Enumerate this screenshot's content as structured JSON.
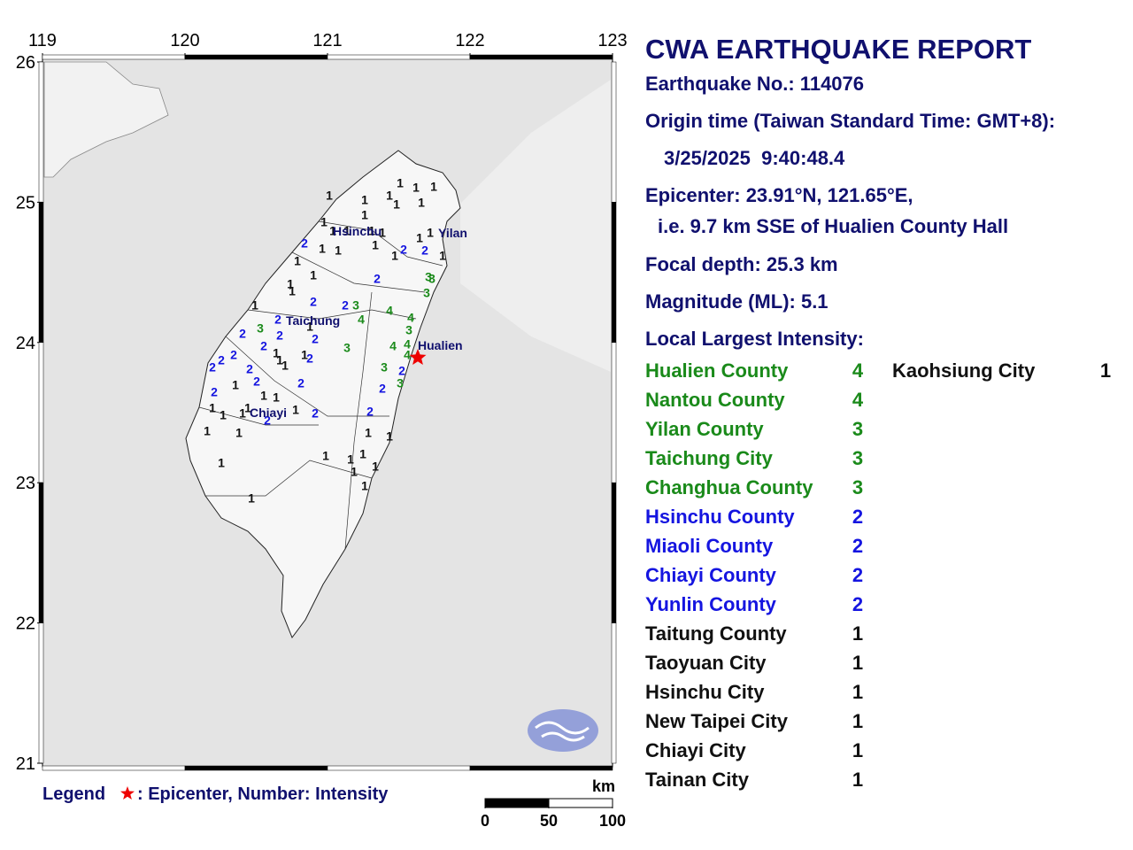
{
  "map": {
    "lon_ticks": [
      119,
      120,
      121,
      122,
      123
    ],
    "lat_ticks": [
      26,
      25,
      24,
      23,
      22,
      21
    ],
    "place_labels": [
      "Hsinchu",
      "Yilan",
      "Taichung",
      "Hualien",
      "Chiayi"
    ],
    "stations": [
      1,
      1,
      1,
      1,
      1,
      1,
      1,
      1,
      1,
      1,
      1,
      1,
      1,
      1,
      1,
      1,
      2,
      1,
      1,
      2,
      2,
      1,
      1,
      1,
      1,
      1,
      2,
      3,
      3,
      1,
      3,
      1,
      2,
      2,
      3,
      4,
      1,
      4,
      4,
      2,
      1,
      2,
      3,
      2,
      2,
      3,
      3,
      4,
      4,
      2,
      2,
      1,
      1,
      4,
      2,
      1,
      2,
      2,
      2,
      1,
      3,
      2,
      2,
      1,
      2,
      3,
      2,
      2,
      1,
      1,
      1,
      1,
      1,
      1,
      2,
      2,
      2,
      1,
      1,
      1,
      1,
      1,
      1,
      1,
      1,
      1,
      1,
      1,
      1,
      1
    ],
    "legend": {
      "title": "Legend",
      "text": ": Epicenter, Number: Intensity"
    },
    "scale": {
      "unit": "km",
      "ticks": [
        0,
        50,
        100
      ]
    }
  },
  "report": {
    "title": "CWA EARTHQUAKE REPORT",
    "number": "Earthquake No.: 114076",
    "origin_label": "Origin time (Taiwan Standard Time: GMT+8):",
    "origin_time": "3/25/2025  9:40:48.4",
    "epicenter": "Epicenter: 23.91°N, 121.65°E,",
    "epicenter_desc": "i.e. 9.7 km SSE of Hualien County Hall",
    "depth": "Focal depth: 25.3 km",
    "magnitude": "Magnitude (ML): 5.1",
    "intensity_heading": "Local Largest Intensity:",
    "intensities": [
      {
        "area": "Hualien County",
        "level": 4
      },
      {
        "area": "Nantou County",
        "level": 4
      },
      {
        "area": "Yilan County",
        "level": 3
      },
      {
        "area": "Taichung City",
        "level": 3
      },
      {
        "area": "Changhua County",
        "level": 3
      },
      {
        "area": "Hsinchu County",
        "level": 2
      },
      {
        "area": "Miaoli County",
        "level": 2
      },
      {
        "area": "Chiayi County",
        "level": 2
      },
      {
        "area": "Yunlin County",
        "level": 2
      },
      {
        "area": "Taitung County",
        "level": 1
      },
      {
        "area": "Taoyuan City",
        "level": 1
      },
      {
        "area": "Hsinchu City",
        "level": 1
      },
      {
        "area": "New Taipei City",
        "level": 1
      },
      {
        "area": "Chiayi City",
        "level": 1
      },
      {
        "area": "Tainan City",
        "level": 1
      }
    ],
    "intensities_right": [
      {
        "area": "Kaohsiung City",
        "level": 1
      }
    ]
  }
}
